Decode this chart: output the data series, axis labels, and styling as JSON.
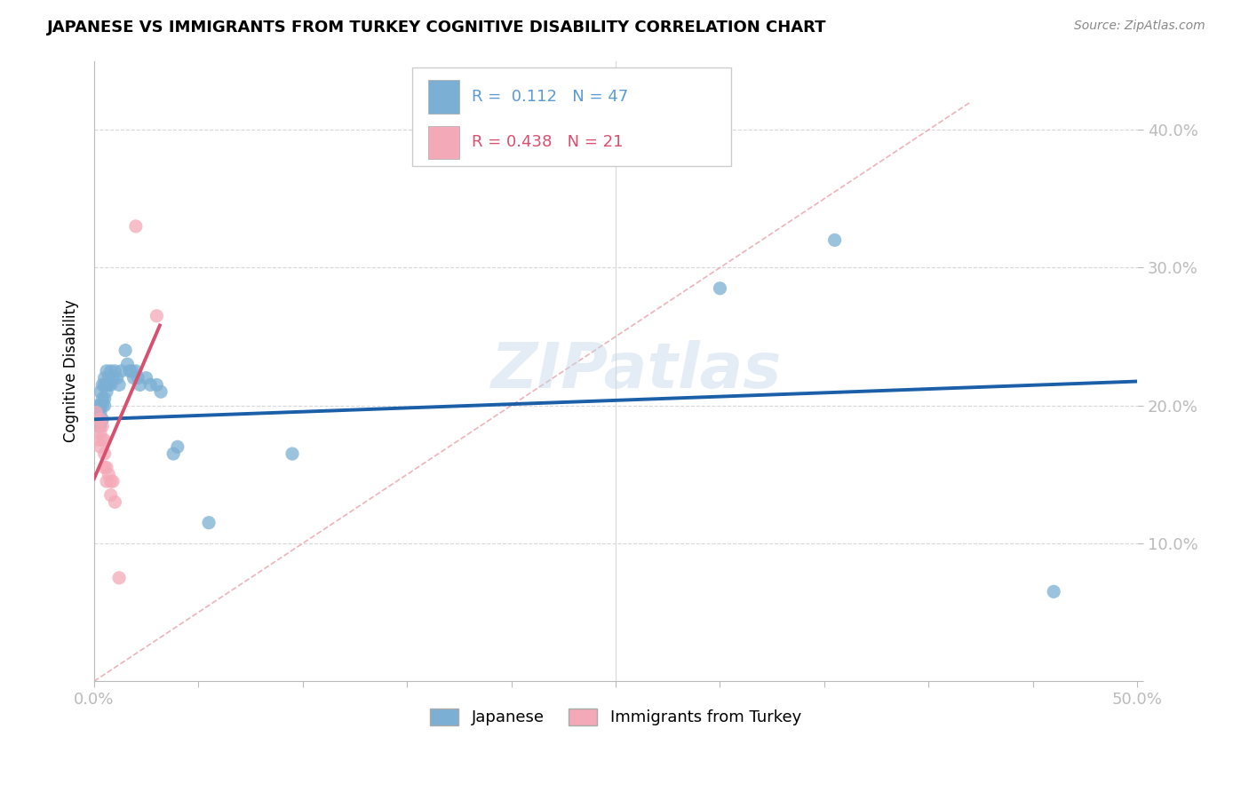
{
  "title": "JAPANESE VS IMMIGRANTS FROM TURKEY COGNITIVE DISABILITY CORRELATION CHART",
  "source": "Source: ZipAtlas.com",
  "ylabel": "Cognitive Disability",
  "xlim": [
    0.0,
    0.5
  ],
  "ylim": [
    0.0,
    0.45
  ],
  "xticks": [
    0.0,
    0.05,
    0.1,
    0.15,
    0.2,
    0.25,
    0.3,
    0.35,
    0.4,
    0.45,
    0.5
  ],
  "yticks": [
    0.0,
    0.1,
    0.2,
    0.3,
    0.4
  ],
  "xticklabels": [
    "0.0%",
    "",
    "",
    "",
    "",
    "",
    "",
    "",
    "",
    "",
    "50.0%"
  ],
  "yticklabels": [
    "",
    "10.0%",
    "20.0%",
    "30.0%",
    "40.0%"
  ],
  "watermark": "ZIPatlas",
  "japanese_R": "0.112",
  "japanese_N": "47",
  "turkey_R": "0.438",
  "turkey_N": "21",
  "japanese_color": "#7bafd4",
  "turkey_color": "#f4a9b8",
  "japanese_line_color": "#1a5fa8",
  "turkey_line_color": "#d94f6e",
  "diagonal_color": "#e8a0a8",
  "japanese_points": [
    [
      0.001,
      0.195
    ],
    [
      0.002,
      0.2
    ],
    [
      0.002,
      0.195
    ],
    [
      0.002,
      0.185
    ],
    [
      0.003,
      0.21
    ],
    [
      0.003,
      0.2
    ],
    [
      0.003,
      0.195
    ],
    [
      0.003,
      0.185
    ],
    [
      0.004,
      0.215
    ],
    [
      0.004,
      0.205
    ],
    [
      0.004,
      0.2
    ],
    [
      0.004,
      0.19
    ],
    [
      0.005,
      0.22
    ],
    [
      0.005,
      0.215
    ],
    [
      0.005,
      0.205
    ],
    [
      0.005,
      0.2
    ],
    [
      0.006,
      0.225
    ],
    [
      0.006,
      0.215
    ],
    [
      0.006,
      0.21
    ],
    [
      0.007,
      0.22
    ],
    [
      0.007,
      0.215
    ],
    [
      0.008,
      0.225
    ],
    [
      0.008,
      0.215
    ],
    [
      0.009,
      0.22
    ],
    [
      0.01,
      0.225
    ],
    [
      0.011,
      0.22
    ],
    [
      0.012,
      0.215
    ],
    [
      0.013,
      0.225
    ],
    [
      0.015,
      0.24
    ],
    [
      0.016,
      0.23
    ],
    [
      0.017,
      0.225
    ],
    [
      0.018,
      0.225
    ],
    [
      0.019,
      0.22
    ],
    [
      0.02,
      0.225
    ],
    [
      0.021,
      0.22
    ],
    [
      0.022,
      0.215
    ],
    [
      0.025,
      0.22
    ],
    [
      0.027,
      0.215
    ],
    [
      0.03,
      0.215
    ],
    [
      0.032,
      0.21
    ],
    [
      0.038,
      0.165
    ],
    [
      0.04,
      0.17
    ],
    [
      0.055,
      0.115
    ],
    [
      0.095,
      0.165
    ],
    [
      0.3,
      0.285
    ],
    [
      0.355,
      0.32
    ],
    [
      0.46,
      0.065
    ]
  ],
  "turkey_points": [
    [
      0.001,
      0.195
    ],
    [
      0.002,
      0.185
    ],
    [
      0.002,
      0.175
    ],
    [
      0.003,
      0.19
    ],
    [
      0.003,
      0.18
    ],
    [
      0.003,
      0.17
    ],
    [
      0.004,
      0.185
    ],
    [
      0.004,
      0.175
    ],
    [
      0.005,
      0.175
    ],
    [
      0.005,
      0.165
    ],
    [
      0.005,
      0.155
    ],
    [
      0.006,
      0.155
    ],
    [
      0.006,
      0.145
    ],
    [
      0.007,
      0.15
    ],
    [
      0.008,
      0.145
    ],
    [
      0.008,
      0.135
    ],
    [
      0.009,
      0.145
    ],
    [
      0.01,
      0.13
    ],
    [
      0.012,
      0.075
    ],
    [
      0.02,
      0.33
    ],
    [
      0.03,
      0.265
    ]
  ],
  "background_color": "#ffffff",
  "grid_color": "#d8d8d8"
}
